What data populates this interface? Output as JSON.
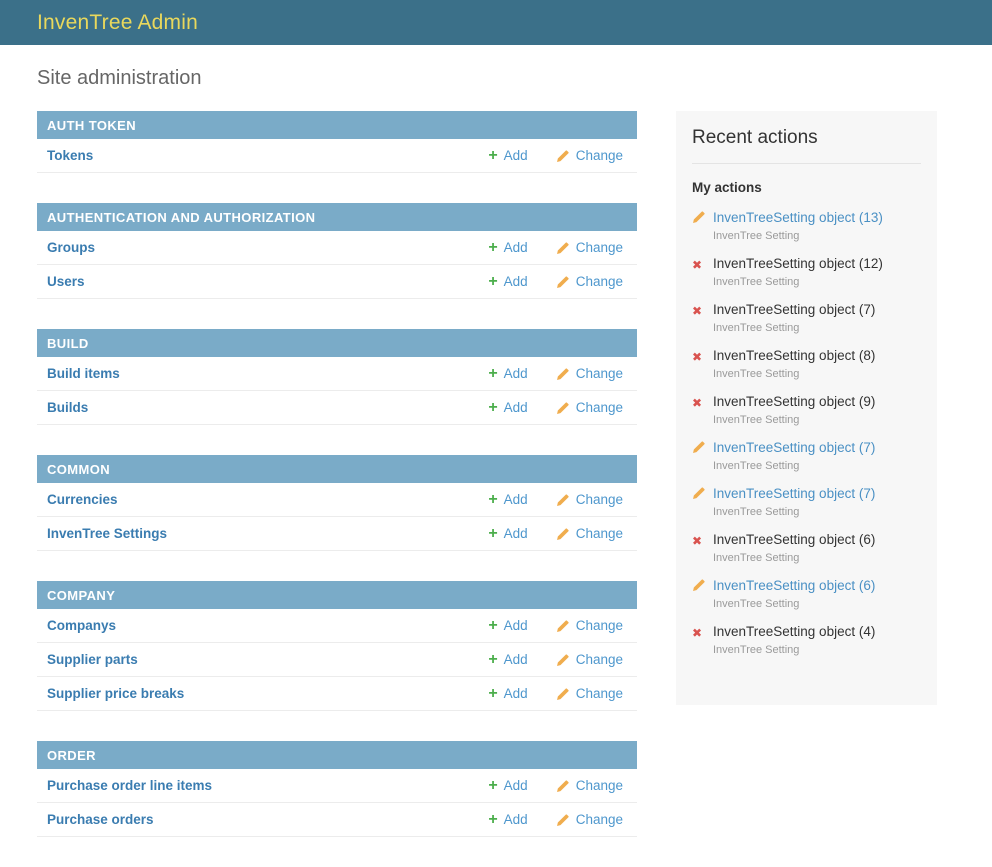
{
  "header": {
    "title": "InvenTree Admin"
  },
  "page": {
    "title": "Site administration"
  },
  "module_actions": {
    "add": "Add",
    "change": "Change"
  },
  "icons": {
    "add": "plus-icon",
    "change": "pencil-icon",
    "delete": "delete-icon"
  },
  "colors": {
    "header_bg": "#3b7089",
    "header_text": "#e9d85c",
    "module_caption_bg": "#7aabc8",
    "link_blue": "#4e97cd",
    "model_link_blue": "#3a7cb0",
    "add_green": "#4cae4c",
    "pencil_yellow": "#f0ad4e",
    "delete_red": "#d9534f",
    "panel_bg": "#f7f7f7"
  },
  "modules": [
    {
      "name": "AUTH TOKEN",
      "models": [
        {
          "label": "Tokens"
        }
      ]
    },
    {
      "name": "AUTHENTICATION AND AUTHORIZATION",
      "models": [
        {
          "label": "Groups"
        },
        {
          "label": "Users"
        }
      ]
    },
    {
      "name": "BUILD",
      "models": [
        {
          "label": "Build items"
        },
        {
          "label": "Builds"
        }
      ]
    },
    {
      "name": "COMMON",
      "models": [
        {
          "label": "Currencies"
        },
        {
          "label": "InvenTree Settings"
        }
      ]
    },
    {
      "name": "COMPANY",
      "models": [
        {
          "label": "Companys"
        },
        {
          "label": "Supplier parts"
        },
        {
          "label": "Supplier price breaks"
        }
      ]
    },
    {
      "name": "ORDER",
      "models": [
        {
          "label": "Purchase order line items"
        },
        {
          "label": "Purchase orders"
        }
      ]
    }
  ],
  "sidebar": {
    "title": "Recent actions",
    "subtitle": "My actions",
    "actions": [
      {
        "icon": "pencil",
        "label": "InvenTreeSetting object (13)",
        "sublabel": "InvenTree Setting",
        "link": true
      },
      {
        "icon": "delete",
        "label": "InvenTreeSetting object (12)",
        "sublabel": "InvenTree Setting",
        "link": false
      },
      {
        "icon": "delete",
        "label": "InvenTreeSetting object (7)",
        "sublabel": "InvenTree Setting",
        "link": false
      },
      {
        "icon": "delete",
        "label": "InvenTreeSetting object (8)",
        "sublabel": "InvenTree Setting",
        "link": false
      },
      {
        "icon": "delete",
        "label": "InvenTreeSetting object (9)",
        "sublabel": "InvenTree Setting",
        "link": false
      },
      {
        "icon": "pencil",
        "label": "InvenTreeSetting object (7)",
        "sublabel": "InvenTree Setting",
        "link": true
      },
      {
        "icon": "pencil",
        "label": "InvenTreeSetting object (7)",
        "sublabel": "InvenTree Setting",
        "link": true
      },
      {
        "icon": "delete",
        "label": "InvenTreeSetting object (6)",
        "sublabel": "InvenTree Setting",
        "link": false
      },
      {
        "icon": "pencil",
        "label": "InvenTreeSetting object (6)",
        "sublabel": "InvenTree Setting",
        "link": true
      },
      {
        "icon": "delete",
        "label": "InvenTreeSetting object (4)",
        "sublabel": "InvenTree Setting",
        "link": false
      }
    ]
  }
}
